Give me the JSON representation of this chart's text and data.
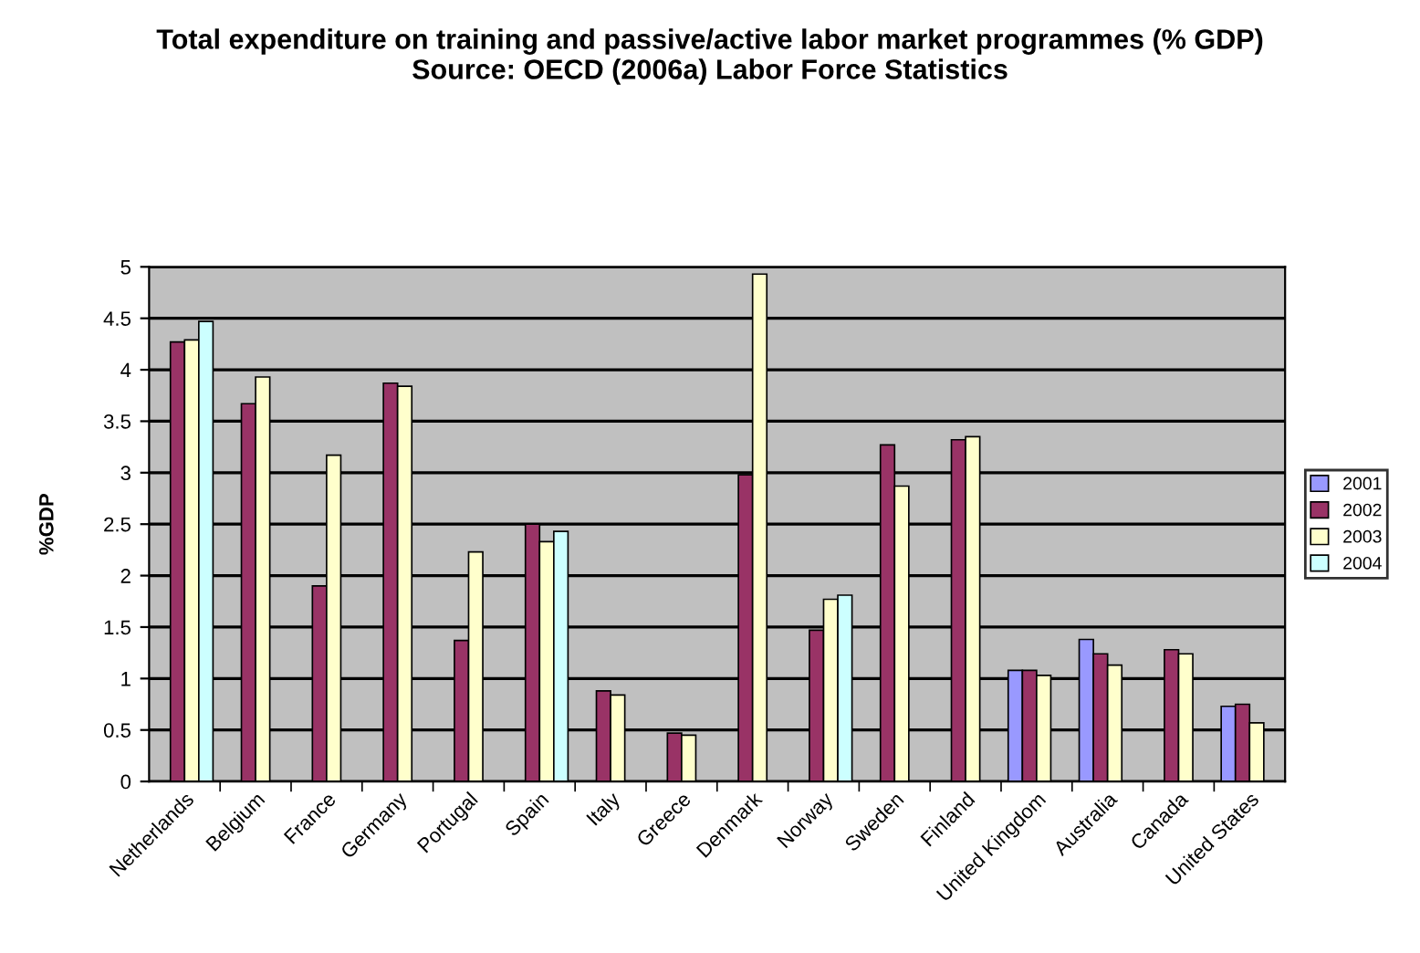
{
  "chart_data": {
    "type": "bar",
    "title": "Total expenditure on training and passive/active labor market programmes (% GDP)\nSource: OECD (2006a) Labor Force Statistics",
    "ylabel": "%GDP",
    "categories": [
      "Netherlands",
      "Belgium",
      "France",
      "Germany",
      "Portugal",
      "Spain",
      "Italy",
      "Greece",
      "Denmark",
      "Norway",
      "Sweden",
      "Finland",
      "United Kingdom",
      "Australia",
      "Canada",
      "United States"
    ],
    "series": [
      {
        "name": "2001",
        "color": "#9999ff",
        "values": [
          null,
          null,
          null,
          null,
          null,
          null,
          null,
          null,
          null,
          null,
          null,
          null,
          1.08,
          1.38,
          null,
          0.73
        ]
      },
      {
        "name": "2002",
        "color": "#993366",
        "values": [
          4.27,
          3.67,
          1.9,
          3.87,
          1.37,
          2.5,
          0.88,
          0.47,
          2.98,
          1.47,
          3.27,
          3.32,
          1.08,
          1.24,
          1.28,
          0.75
        ]
      },
      {
        "name": "2003",
        "color": "#ffffcc",
        "values": [
          4.29,
          3.93,
          3.17,
          3.84,
          2.23,
          2.33,
          0.84,
          0.45,
          4.93,
          1.77,
          2.87,
          3.35,
          1.03,
          1.13,
          1.24,
          0.57
        ]
      },
      {
        "name": "2004",
        "color": "#ccffff",
        "values": [
          4.47,
          null,
          null,
          null,
          null,
          2.43,
          null,
          null,
          null,
          1.81,
          null,
          null,
          null,
          null,
          null,
          null
        ]
      }
    ],
    "ylim": [
      0,
      5
    ],
    "yticks": [
      0,
      0.5,
      1,
      1.5,
      2,
      2.5,
      3,
      3.5,
      4,
      4.5,
      5
    ],
    "grid": "y",
    "legend": "right"
  }
}
